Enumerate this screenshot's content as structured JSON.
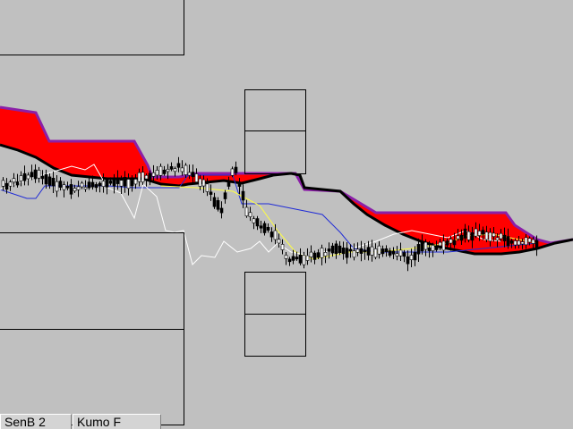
{
  "colors": {
    "background": "#c0c0c0",
    "kumo_bearish": "#ff0000",
    "kumo_bullish": "#00e020",
    "senkou_a": "#000000",
    "senkou_b": "#8b1fa8",
    "kijun": "#1f2bd6",
    "tenkan": "#ffff40",
    "chikou": "#ffffff",
    "candle": "#000000"
  },
  "tabs": [
    {
      "label": "SenB 2"
    },
    {
      "label": "Kumo F"
    }
  ]
}
